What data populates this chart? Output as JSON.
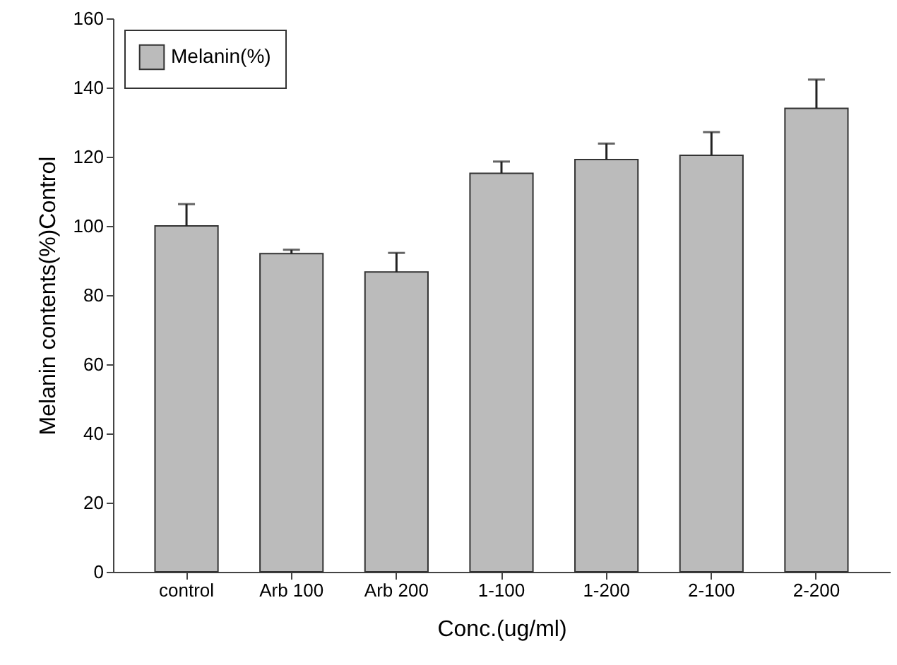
{
  "chart_data": {
    "type": "bar",
    "xlabel": "Conc.(ug/ml)",
    "ylabel": "Melanin contents(%)Control",
    "categories": [
      "control",
      "Arb 100",
      "Arb 200",
      "1-100",
      "1-200",
      "2-100",
      "2-200"
    ],
    "series": [
      {
        "name": "Melanin(%)",
        "color": "#bbbbbb",
        "values": [
          100,
          92.0,
          86.7,
          115.2,
          119.2,
          120.4,
          134.0
        ],
        "errors": [
          [
            100,
            106.3
          ],
          [
            92.0,
            93.1
          ],
          [
            86.7,
            92.2
          ],
          [
            115.2,
            118.6
          ],
          [
            119.2,
            123.8
          ],
          [
            120.4,
            127.1
          ],
          [
            134.0,
            142.3
          ]
        ]
      }
    ],
    "ylim": [
      0,
      160
    ],
    "yticks": [
      0,
      20,
      40,
      60,
      80,
      100,
      120,
      140,
      160
    ],
    "grid": false,
    "legend": "top left"
  }
}
